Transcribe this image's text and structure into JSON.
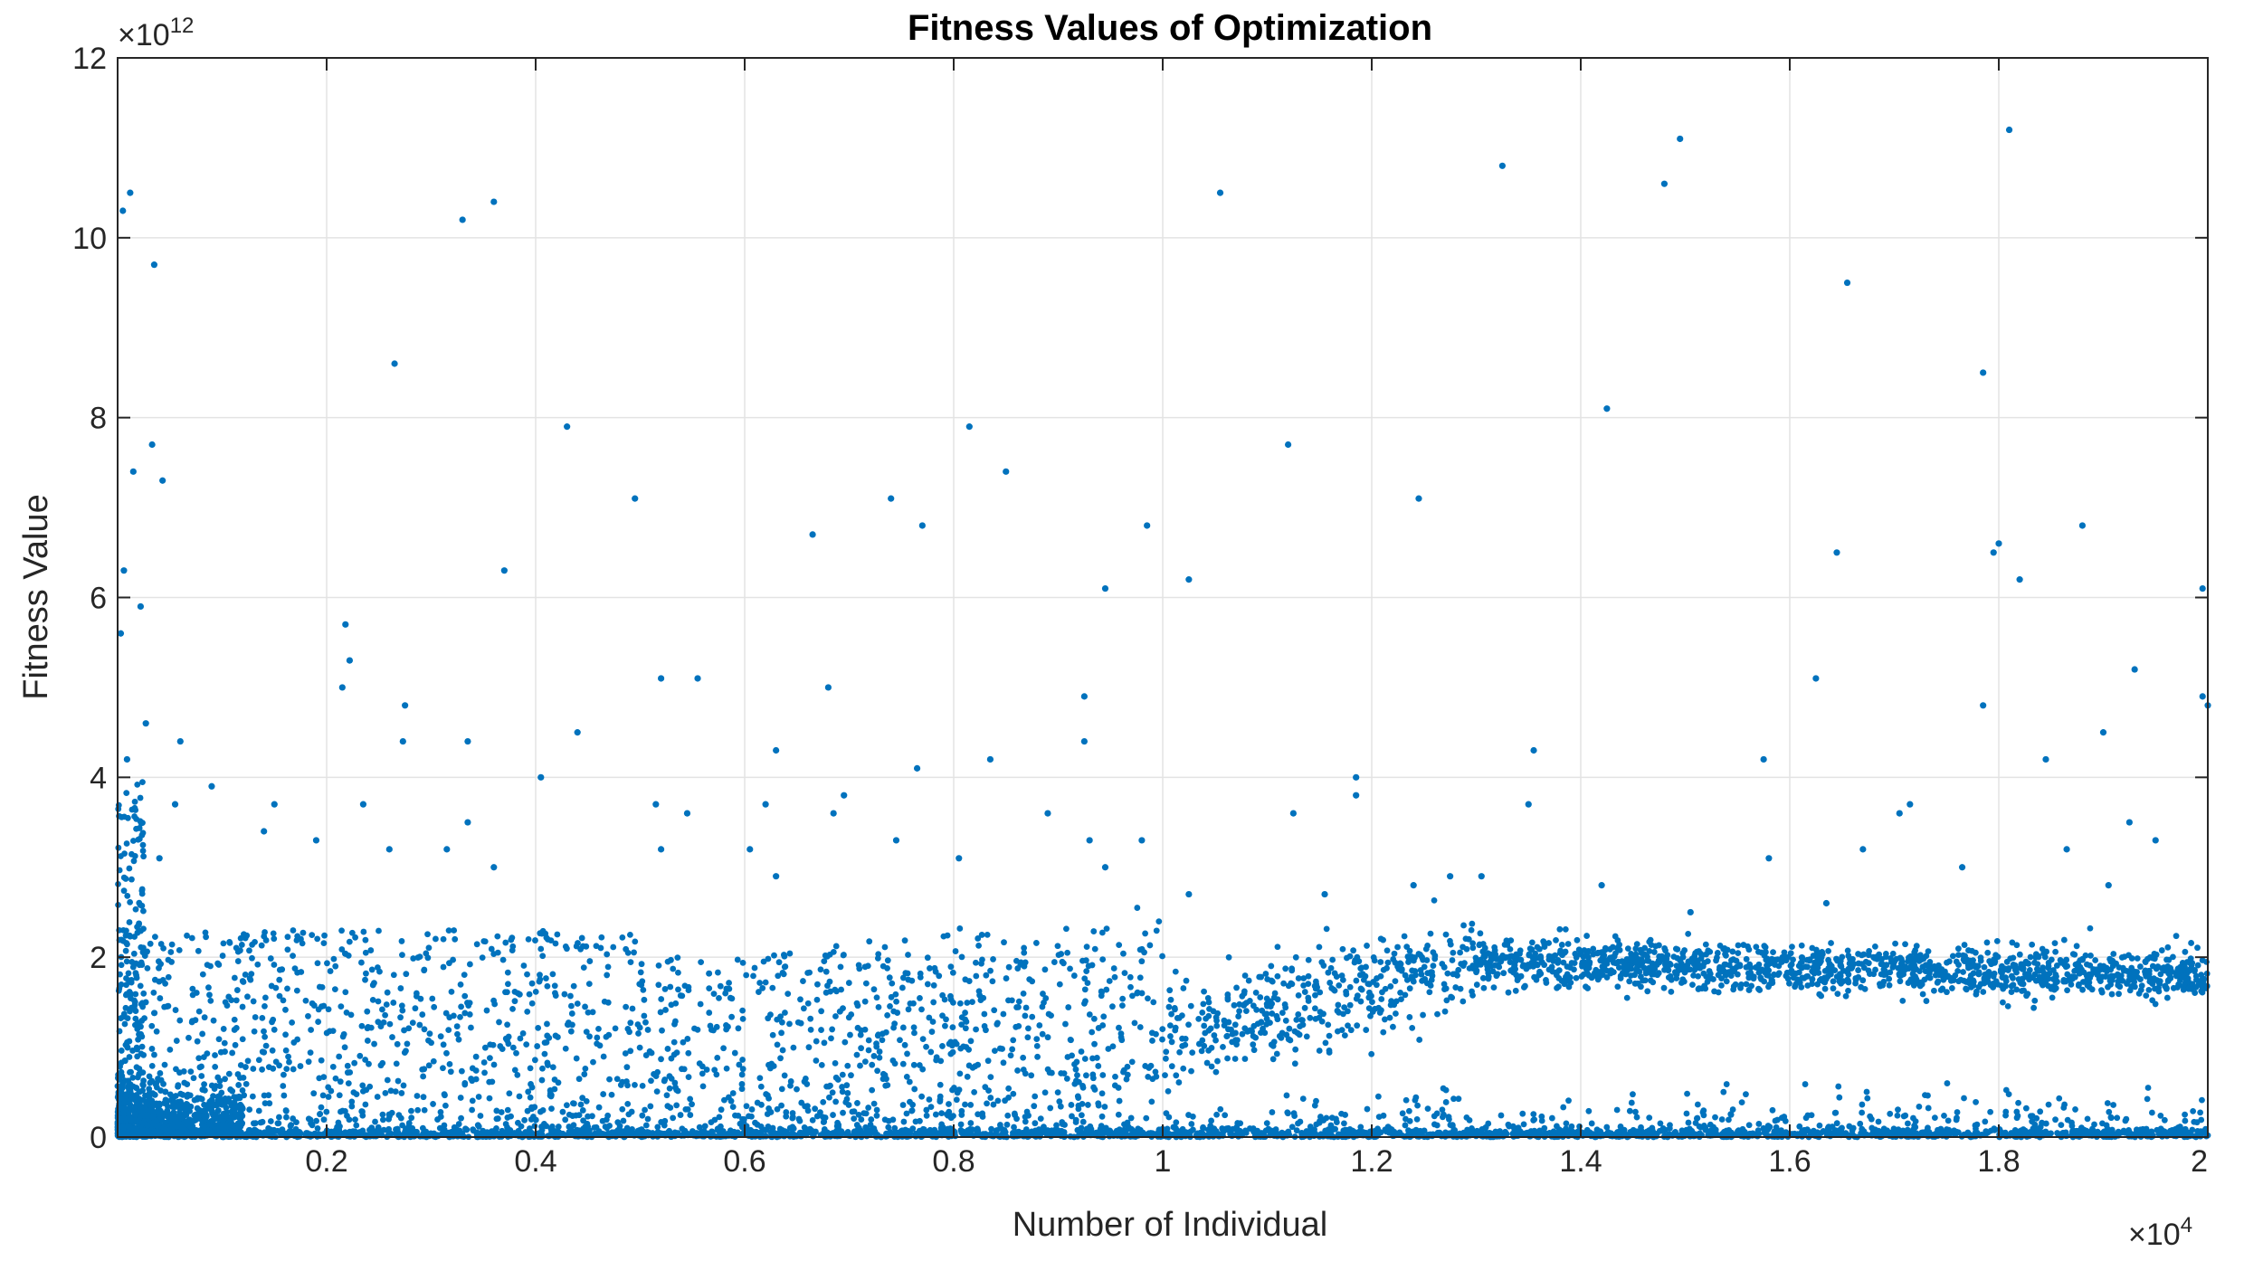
{
  "chart_data": {
    "type": "scatter",
    "title": "Fitness Values of Optimization",
    "xlabel": "Number of Individual",
    "ylabel": "Fitness Value",
    "xlim": [
      0,
      20000
    ],
    "ylim": [
      0,
      12000000000000
    ],
    "x_exponent_base": "×10",
    "x_exponent_power": "4",
    "y_exponent_base": "×10",
    "y_exponent_power": "12",
    "xticks": [
      2000,
      4000,
      6000,
      8000,
      10000,
      12000,
      14000,
      16000,
      18000,
      20000
    ],
    "xtick_labels": [
      "0.2",
      "0.4",
      "0.6",
      "0.8",
      "1",
      "1.2",
      "1.4",
      "1.6",
      "1.8",
      "2"
    ],
    "yticks": [
      0,
      2000000000000,
      4000000000000,
      6000000000000,
      8000000000000,
      10000000000000,
      12000000000000
    ],
    "ytick_labels": [
      "0",
      "2",
      "4",
      "6",
      "8",
      "10",
      "12"
    ],
    "grid": true,
    "marker_color": "#0072BD",
    "series": [
      {
        "points": [
          [
            50,
            10.3
          ],
          [
            120,
            10.5
          ],
          [
            350,
            9.7
          ],
          [
            2650,
            8.6
          ],
          [
            3300,
            10.2
          ],
          [
            3600,
            10.4
          ],
          [
            10550,
            10.5
          ],
          [
            13250,
            10.8
          ],
          [
            14800,
            10.6
          ],
          [
            14950,
            11.1
          ],
          [
            18100,
            11.2
          ],
          [
            330,
            7.7
          ],
          [
            150,
            7.4
          ],
          [
            430,
            7.3
          ],
          [
            4300,
            7.9
          ],
          [
            4950,
            7.1
          ],
          [
            8150,
            7.9
          ],
          [
            8500,
            7.4
          ],
          [
            7400,
            7.1
          ],
          [
            7700,
            6.8
          ],
          [
            6650,
            6.7
          ],
          [
            9850,
            6.8
          ],
          [
            11200,
            7.7
          ],
          [
            12450,
            7.1
          ],
          [
            14250,
            8.1
          ],
          [
            16550,
            9.5
          ],
          [
            17850,
            8.5
          ],
          [
            18000,
            6.6
          ],
          [
            17950,
            6.5
          ],
          [
            18200,
            6.2
          ],
          [
            18800,
            6.8
          ],
          [
            19950,
            6.1
          ],
          [
            60,
            6.3
          ],
          [
            220,
            5.9
          ],
          [
            30,
            5.6
          ],
          [
            3700,
            6.3
          ],
          [
            9450,
            6.1
          ],
          [
            10250,
            6.2
          ],
          [
            16450,
            6.5
          ],
          [
            2180,
            5.7
          ],
          [
            2220,
            5.3
          ],
          [
            2150,
            5.0
          ],
          [
            5200,
            5.1
          ],
          [
            5550,
            5.1
          ],
          [
            9250,
            4.9
          ],
          [
            6800,
            5.0
          ],
          [
            2750,
            4.8
          ],
          [
            2730,
            4.4
          ],
          [
            3350,
            4.4
          ],
          [
            4400,
            4.5
          ],
          [
            6300,
            4.3
          ],
          [
            8350,
            4.2
          ],
          [
            9250,
            4.4
          ],
          [
            15750,
            4.2
          ],
          [
            16250,
            5.1
          ],
          [
            17850,
            4.8
          ],
          [
            19300,
            5.2
          ],
          [
            19000,
            4.5
          ],
          [
            19950,
            4.9
          ],
          [
            20000,
            4.8
          ],
          [
            18450,
            4.2
          ],
          [
            13550,
            4.3
          ],
          [
            270,
            4.6
          ],
          [
            600,
            4.4
          ],
          [
            90,
            4.2
          ],
          [
            4050,
            4.0
          ],
          [
            7650,
            4.1
          ],
          [
            11850,
            4.0
          ],
          [
            11850,
            3.8
          ],
          [
            13500,
            3.7
          ],
          [
            11250,
            3.6
          ],
          [
            17150,
            3.7
          ],
          [
            19250,
            3.5
          ],
          [
            6950,
            3.8
          ],
          [
            6850,
            3.6
          ],
          [
            6200,
            3.7
          ],
          [
            5150,
            3.7
          ],
          [
            5450,
            3.6
          ],
          [
            2350,
            3.7
          ],
          [
            1500,
            3.7
          ],
          [
            1400,
            3.4
          ],
          [
            900,
            3.9
          ],
          [
            550,
            3.7
          ],
          [
            400,
            3.1
          ],
          [
            1900,
            3.3
          ],
          [
            2600,
            3.2
          ],
          [
            3150,
            3.2
          ],
          [
            3350,
            3.5
          ],
          [
            3600,
            3.0
          ],
          [
            5200,
            3.2
          ],
          [
            6050,
            3.2
          ],
          [
            6300,
            2.9
          ],
          [
            7450,
            3.3
          ],
          [
            8050,
            3.1
          ],
          [
            8900,
            3.6
          ],
          [
            9300,
            3.3
          ],
          [
            9800,
            3.3
          ],
          [
            9450,
            3.0
          ],
          [
            15800,
            3.1
          ],
          [
            16700,
            3.2
          ],
          [
            17650,
            3.0
          ],
          [
            18650,
            3.2
          ],
          [
            19500,
            3.3
          ],
          [
            17050,
            3.6
          ],
          [
            13050,
            2.9
          ],
          [
            12750,
            2.9
          ],
          [
            12400,
            2.8
          ],
          [
            11550,
            2.7
          ],
          [
            10250,
            2.7
          ],
          [
            14200,
            2.8
          ],
          [
            19050,
            2.8
          ],
          [
            16350,
            2.6
          ],
          [
            15050,
            2.5
          ]
        ]
      }
    ]
  }
}
